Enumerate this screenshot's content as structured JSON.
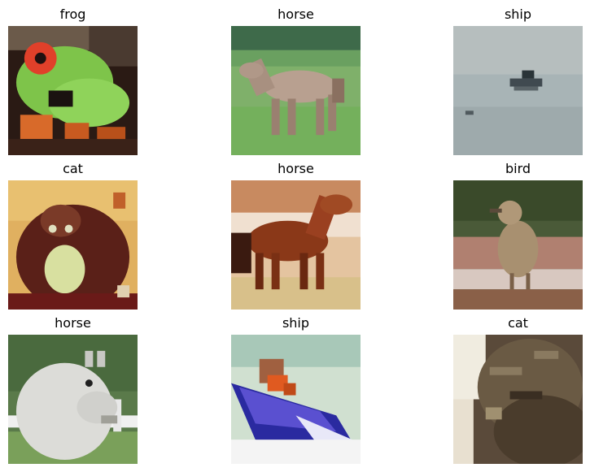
{
  "grid": {
    "tiles": [
      {
        "label": "frog",
        "subject": "frog-image"
      },
      {
        "label": "horse",
        "subject": "horse-image"
      },
      {
        "label": "ship",
        "subject": "ship-image"
      },
      {
        "label": "cat",
        "subject": "cat-image"
      },
      {
        "label": "horse",
        "subject": "horse-image"
      },
      {
        "label": "bird",
        "subject": "bird-image"
      },
      {
        "label": "horse",
        "subject": "horse-image"
      },
      {
        "label": "ship",
        "subject": "ship-image"
      },
      {
        "label": "cat",
        "subject": "cat-image"
      }
    ]
  }
}
